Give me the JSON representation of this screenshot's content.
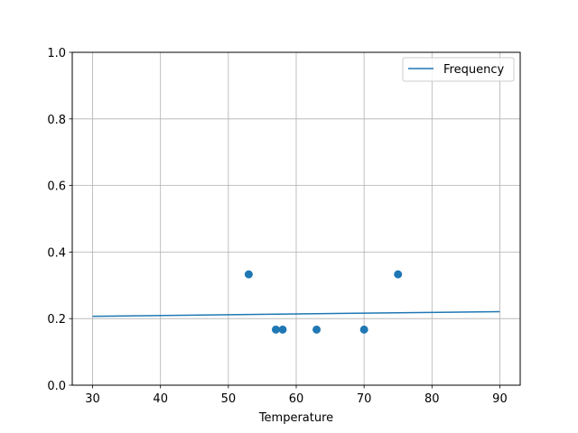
{
  "chart_data": {
    "type": "scatter",
    "title": "",
    "xlabel": "Temperature",
    "ylabel": "",
    "xlim": [
      27,
      93
    ],
    "ylim": [
      0,
      1.0
    ],
    "xticks": [
      30,
      40,
      50,
      60,
      70,
      80,
      90
    ],
    "yticks": [
      0.0,
      0.2,
      0.4,
      0.6,
      0.8,
      1.0
    ],
    "ytick_labels": [
      "0.0",
      "0.2",
      "0.4",
      "0.6",
      "0.8",
      "1.0"
    ],
    "grid": true,
    "legend": {
      "position": "top-right",
      "entries": [
        "Frequency"
      ]
    },
    "color": "#1f77b4",
    "scatter_points": {
      "x": [
        53,
        57,
        58,
        63,
        70,
        75
      ],
      "y": [
        0.333,
        0.167,
        0.167,
        0.167,
        0.167,
        0.333
      ]
    },
    "series": [
      {
        "name": "Frequency",
        "type": "line",
        "x": [
          30,
          90
        ],
        "y": [
          0.207,
          0.221
        ]
      }
    ]
  }
}
